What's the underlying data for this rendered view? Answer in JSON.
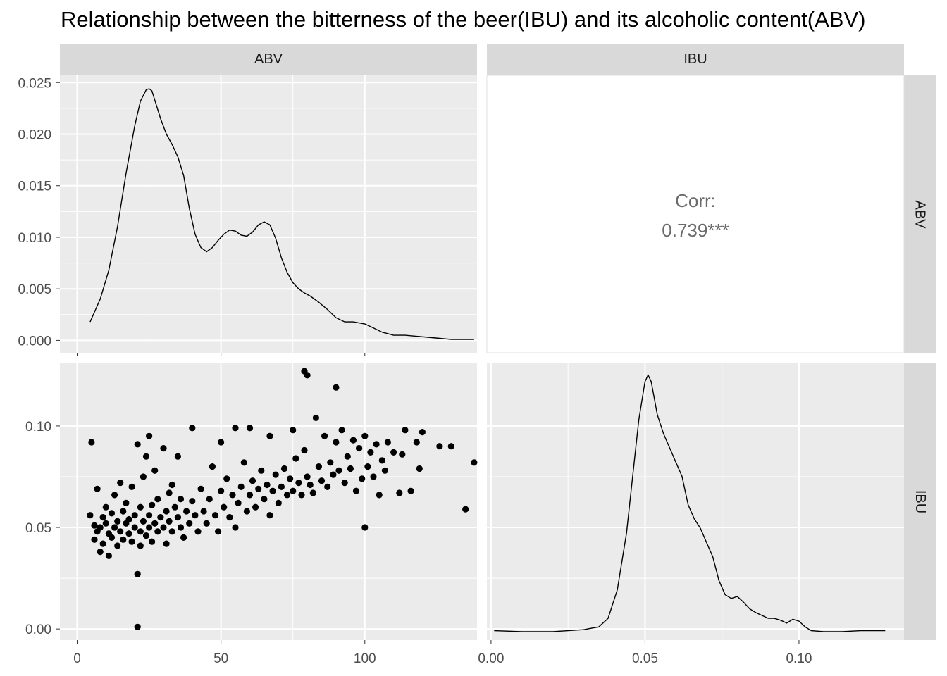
{
  "title": "Relationship between the bitterness of the beer(IBU) and its alcoholic content(ABV)",
  "strips": {
    "top": [
      "ABV",
      "IBU"
    ],
    "right": [
      "ABV",
      "IBU"
    ]
  },
  "corr": {
    "label": "Corr:",
    "value": "0.739***"
  },
  "colors": {
    "panel_bg": "#ebebeb",
    "grid": "#ffffff",
    "strip_bg": "#d9d9d9",
    "mark": "#000000",
    "corr_text": "#6b6b6b",
    "tick_text": "#4d4d4d"
  },
  "chart_data": [
    {
      "type": "line",
      "panel": "ABV density (top-left)",
      "xlim": [
        -6,
        139
      ],
      "ylim": [
        -0.0012,
        0.0257
      ],
      "x_ticks": [
        0,
        50,
        100
      ],
      "y_ticks": [
        0.0,
        0.005,
        0.01,
        0.015,
        0.02,
        0.025
      ],
      "y_tick_labels": [
        "0.000",
        "0.005",
        "0.010",
        "0.015",
        "0.020",
        "0.025"
      ],
      "x": [
        4.5,
        8,
        11,
        14,
        17,
        20,
        22,
        24,
        25,
        26,
        27,
        29,
        31,
        33,
        35,
        37,
        39,
        41,
        43,
        45,
        47,
        49,
        51,
        53,
        55,
        57,
        59,
        61,
        63,
        65,
        67,
        69,
        71,
        73,
        75,
        77,
        79,
        81,
        84,
        87,
        90,
        93,
        96,
        100,
        103,
        106,
        110,
        114,
        118,
        122,
        126,
        130,
        134,
        138
      ],
      "y": [
        0.0018,
        0.004,
        0.0068,
        0.011,
        0.0162,
        0.0208,
        0.0232,
        0.0243,
        0.0244,
        0.0242,
        0.0233,
        0.0215,
        0.02,
        0.019,
        0.0178,
        0.016,
        0.0128,
        0.0103,
        0.009,
        0.0086,
        0.009,
        0.0097,
        0.0103,
        0.0107,
        0.0106,
        0.0102,
        0.0101,
        0.0105,
        0.0112,
        0.0115,
        0.0112,
        0.0099,
        0.008,
        0.0066,
        0.0056,
        0.005,
        0.0046,
        0.0043,
        0.0037,
        0.003,
        0.0022,
        0.0018,
        0.0018,
        0.0016,
        0.0012,
        0.0008,
        0.0005,
        0.0005,
        0.0004,
        0.0003,
        0.0002,
        0.0001,
        0.0001,
        0.0001
      ]
    },
    {
      "type": "scatter",
      "panel": "IBU vs ABV (bottom-left)",
      "xlabel": "",
      "ylabel": "",
      "xlim": [
        -6,
        139
      ],
      "ylim": [
        -0.0055,
        0.1312
      ],
      "x_ticks": [
        0,
        50,
        100
      ],
      "x_tick_labels": [
        "0",
        "50",
        "100"
      ],
      "y_ticks": [
        0.0,
        0.05,
        0.1
      ],
      "y_tick_labels": [
        "0.00",
        "0.05",
        "0.10"
      ],
      "points": [
        [
          4.5,
          0.056
        ],
        [
          5,
          0.092
        ],
        [
          6,
          0.051
        ],
        [
          6,
          0.044
        ],
        [
          7,
          0.048
        ],
        [
          7,
          0.069
        ],
        [
          8,
          0.05
        ],
        [
          8,
          0.038
        ],
        [
          9,
          0.055
        ],
        [
          9,
          0.042
        ],
        [
          10,
          0.052
        ],
        [
          10,
          0.06
        ],
        [
          11,
          0.047
        ],
        [
          11,
          0.036
        ],
        [
          12,
          0.057
        ],
        [
          12,
          0.045
        ],
        [
          13,
          0.05
        ],
        [
          13,
          0.066
        ],
        [
          14,
          0.053
        ],
        [
          14,
          0.041
        ],
        [
          15,
          0.048
        ],
        [
          15,
          0.072
        ],
        [
          16,
          0.058
        ],
        [
          16,
          0.044
        ],
        [
          17,
          0.052
        ],
        [
          17,
          0.062
        ],
        [
          18,
          0.047
        ],
        [
          18,
          0.054
        ],
        [
          19,
          0.07
        ],
        [
          19,
          0.043
        ],
        [
          20,
          0.056
        ],
        [
          20,
          0.05
        ],
        [
          21,
          0.091
        ],
        [
          21,
          0.001
        ],
        [
          21,
          0.027
        ],
        [
          22,
          0.048
        ],
        [
          22,
          0.06
        ],
        [
          22,
          0.041
        ],
        [
          23,
          0.053
        ],
        [
          23,
          0.075
        ],
        [
          24,
          0.085
        ],
        [
          24,
          0.046
        ],
        [
          25,
          0.056
        ],
        [
          25,
          0.095
        ],
        [
          25,
          0.05
        ],
        [
          26,
          0.061
        ],
        [
          26,
          0.043
        ],
        [
          27,
          0.078
        ],
        [
          27,
          0.052
        ],
        [
          28,
          0.048
        ],
        [
          28,
          0.064
        ],
        [
          29,
          0.055
        ],
        [
          30,
          0.089
        ],
        [
          30,
          0.05
        ],
        [
          31,
          0.058
        ],
        [
          31,
          0.042
        ],
        [
          32,
          0.067
        ],
        [
          32,
          0.053
        ],
        [
          33,
          0.071
        ],
        [
          33,
          0.048
        ],
        [
          34,
          0.06
        ],
        [
          35,
          0.085
        ],
        [
          35,
          0.055
        ],
        [
          36,
          0.05
        ],
        [
          36,
          0.064
        ],
        [
          37,
          0.045
        ],
        [
          38,
          0.058
        ],
        [
          39,
          0.052
        ],
        [
          40,
          0.063
        ],
        [
          40,
          0.099
        ],
        [
          41,
          0.056
        ],
        [
          42,
          0.048
        ],
        [
          43,
          0.069
        ],
        [
          44,
          0.058
        ],
        [
          45,
          0.052
        ],
        [
          46,
          0.064
        ],
        [
          47,
          0.08
        ],
        [
          48,
          0.056
        ],
        [
          49,
          0.048
        ],
        [
          50,
          0.068
        ],
        [
          50,
          0.092
        ],
        [
          51,
          0.06
        ],
        [
          52,
          0.074
        ],
        [
          53,
          0.055
        ],
        [
          54,
          0.066
        ],
        [
          55,
          0.099
        ],
        [
          55,
          0.05
        ],
        [
          56,
          0.062
        ],
        [
          57,
          0.07
        ],
        [
          58,
          0.082
        ],
        [
          59,
          0.058
        ],
        [
          60,
          0.066
        ],
        [
          60,
          0.099
        ],
        [
          61,
          0.073
        ],
        [
          62,
          0.06
        ],
        [
          63,
          0.069
        ],
        [
          64,
          0.078
        ],
        [
          65,
          0.064
        ],
        [
          66,
          0.071
        ],
        [
          67,
          0.095
        ],
        [
          67,
          0.056
        ],
        [
          68,
          0.068
        ],
        [
          69,
          0.076
        ],
        [
          70,
          0.062
        ],
        [
          71,
          0.07
        ],
        [
          72,
          0.079
        ],
        [
          73,
          0.066
        ],
        [
          74,
          0.074
        ],
        [
          75,
          0.098
        ],
        [
          75,
          0.068
        ],
        [
          76,
          0.084
        ],
        [
          77,
          0.072
        ],
        [
          78,
          0.066
        ],
        [
          79,
          0.088
        ],
        [
          79,
          0.127
        ],
        [
          80,
          0.125
        ],
        [
          80,
          0.075
        ],
        [
          81,
          0.071
        ],
        [
          82,
          0.067
        ],
        [
          83,
          0.104
        ],
        [
          84,
          0.08
        ],
        [
          85,
          0.073
        ],
        [
          86,
          0.095
        ],
        [
          87,
          0.07
        ],
        [
          88,
          0.082
        ],
        [
          89,
          0.076
        ],
        [
          90,
          0.119
        ],
        [
          90,
          0.092
        ],
        [
          91,
          0.078
        ],
        [
          92,
          0.098
        ],
        [
          93,
          0.072
        ],
        [
          94,
          0.085
        ],
        [
          95,
          0.079
        ],
        [
          96,
          0.093
        ],
        [
          97,
          0.068
        ],
        [
          98,
          0.089
        ],
        [
          99,
          0.074
        ],
        [
          100,
          0.05
        ],
        [
          100,
          0.095
        ],
        [
          101,
          0.08
        ],
        [
          102,
          0.087
        ],
        [
          103,
          0.075
        ],
        [
          104,
          0.091
        ],
        [
          105,
          0.066
        ],
        [
          106,
          0.083
        ],
        [
          107,
          0.078
        ],
        [
          108,
          0.092
        ],
        [
          110,
          0.087
        ],
        [
          112,
          0.067
        ],
        [
          113,
          0.086
        ],
        [
          114,
          0.098
        ],
        [
          116,
          0.068
        ],
        [
          118,
          0.092
        ],
        [
          119,
          0.079
        ],
        [
          120,
          0.097
        ],
        [
          126,
          0.09
        ],
        [
          130,
          0.09
        ],
        [
          135,
          0.059
        ],
        [
          138,
          0.082
        ]
      ]
    },
    {
      "type": "line",
      "panel": "IBU density (bottom-right)",
      "xlim": [
        -0.00135,
        0.1341
      ],
      "ylim": [
        -0.8,
        28.5
      ],
      "x_ticks": [
        0.0,
        0.05,
        0.1
      ],
      "x_tick_labels": [
        "0.00",
        "0.05",
        "0.10"
      ],
      "x": [
        0.001,
        0.01,
        0.02,
        0.03,
        0.035,
        0.038,
        0.041,
        0.044,
        0.046,
        0.048,
        0.05,
        0.051,
        0.052,
        0.054,
        0.056,
        0.058,
        0.06,
        0.062,
        0.064,
        0.066,
        0.068,
        0.07,
        0.072,
        0.074,
        0.076,
        0.078,
        0.08,
        0.082,
        0.084,
        0.086,
        0.088,
        0.09,
        0.092,
        0.094,
        0.096,
        0.098,
        0.1,
        0.102,
        0.104,
        0.108,
        0.114,
        0.12,
        0.128
      ],
      "y": [
        0.2,
        0.1,
        0.1,
        0.3,
        0.6,
        1.5,
        4.5,
        10.5,
        16.5,
        22.5,
        26.5,
        27.2,
        26.5,
        23.0,
        21.0,
        19.5,
        18.0,
        16.5,
        13.5,
        12.0,
        11.0,
        9.5,
        8.0,
        5.5,
        4.0,
        3.6,
        3.8,
        3.2,
        2.5,
        2.1,
        1.8,
        1.5,
        1.5,
        1.3,
        1.0,
        1.4,
        1.2,
        0.6,
        0.2,
        0.1,
        0.1,
        0.2,
        0.2
      ]
    }
  ]
}
